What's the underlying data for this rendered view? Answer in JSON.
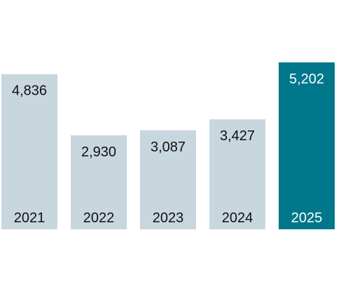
{
  "chart_data": {
    "type": "bar",
    "title": "",
    "xlabel": "",
    "ylabel": "",
    "categories": [
      "2021",
      "2022",
      "2023",
      "2024",
      "2025"
    ],
    "values": [
      4836,
      2930,
      3087,
      3427,
      5202
    ],
    "value_labels": [
      "4,836",
      "2,930",
      "3,087",
      "3,427",
      "5,202"
    ],
    "ylim": [
      0,
      5202
    ],
    "grid": false,
    "legend": "none",
    "colors": {
      "default_bar": "#c8d6de",
      "highlight_bar": "#00778b",
      "default_text": "#111111",
      "highlight_text": "#ffffff"
    },
    "highlight_index": 4
  }
}
